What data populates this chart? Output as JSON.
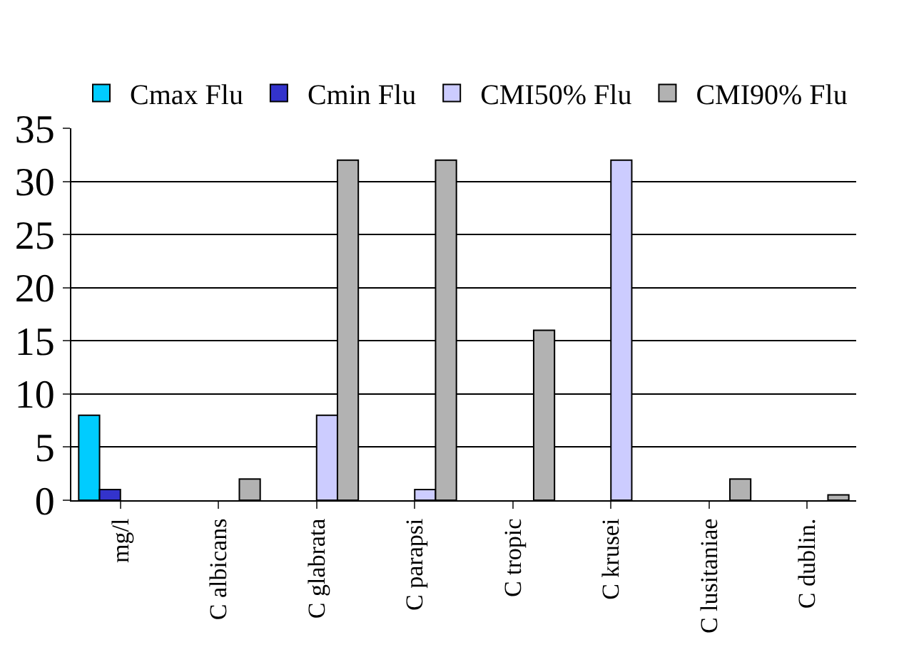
{
  "chart_data": {
    "type": "bar",
    "categories": [
      "mg/l",
      "C albicans",
      "C glabrata",
      "C parapsi",
      "C tropic",
      "C krusei",
      "C lusitaniae",
      "C dublin."
    ],
    "series": [
      {
        "name": "Cmax Flu",
        "color": "#00ccff",
        "values": [
          8,
          null,
          null,
          null,
          null,
          null,
          null,
          null
        ]
      },
      {
        "name": "Cmin Flu",
        "color": "#3333cc",
        "values": [
          1,
          null,
          null,
          null,
          null,
          null,
          null,
          null
        ]
      },
      {
        "name": "CMI50% Flu",
        "color": "#ccccff",
        "values": [
          null,
          null,
          8,
          1,
          null,
          32,
          null,
          null
        ]
      },
      {
        "name": "CMI90% Flu",
        "color": "#b2b2b2",
        "values": [
          null,
          2,
          32,
          32,
          16,
          null,
          2,
          0.5
        ]
      }
    ],
    "ylim": [
      0,
      35
    ],
    "yticks": [
      0,
      5,
      10,
      15,
      20,
      25,
      30,
      35
    ],
    "grid": "y",
    "legend": "top"
  }
}
